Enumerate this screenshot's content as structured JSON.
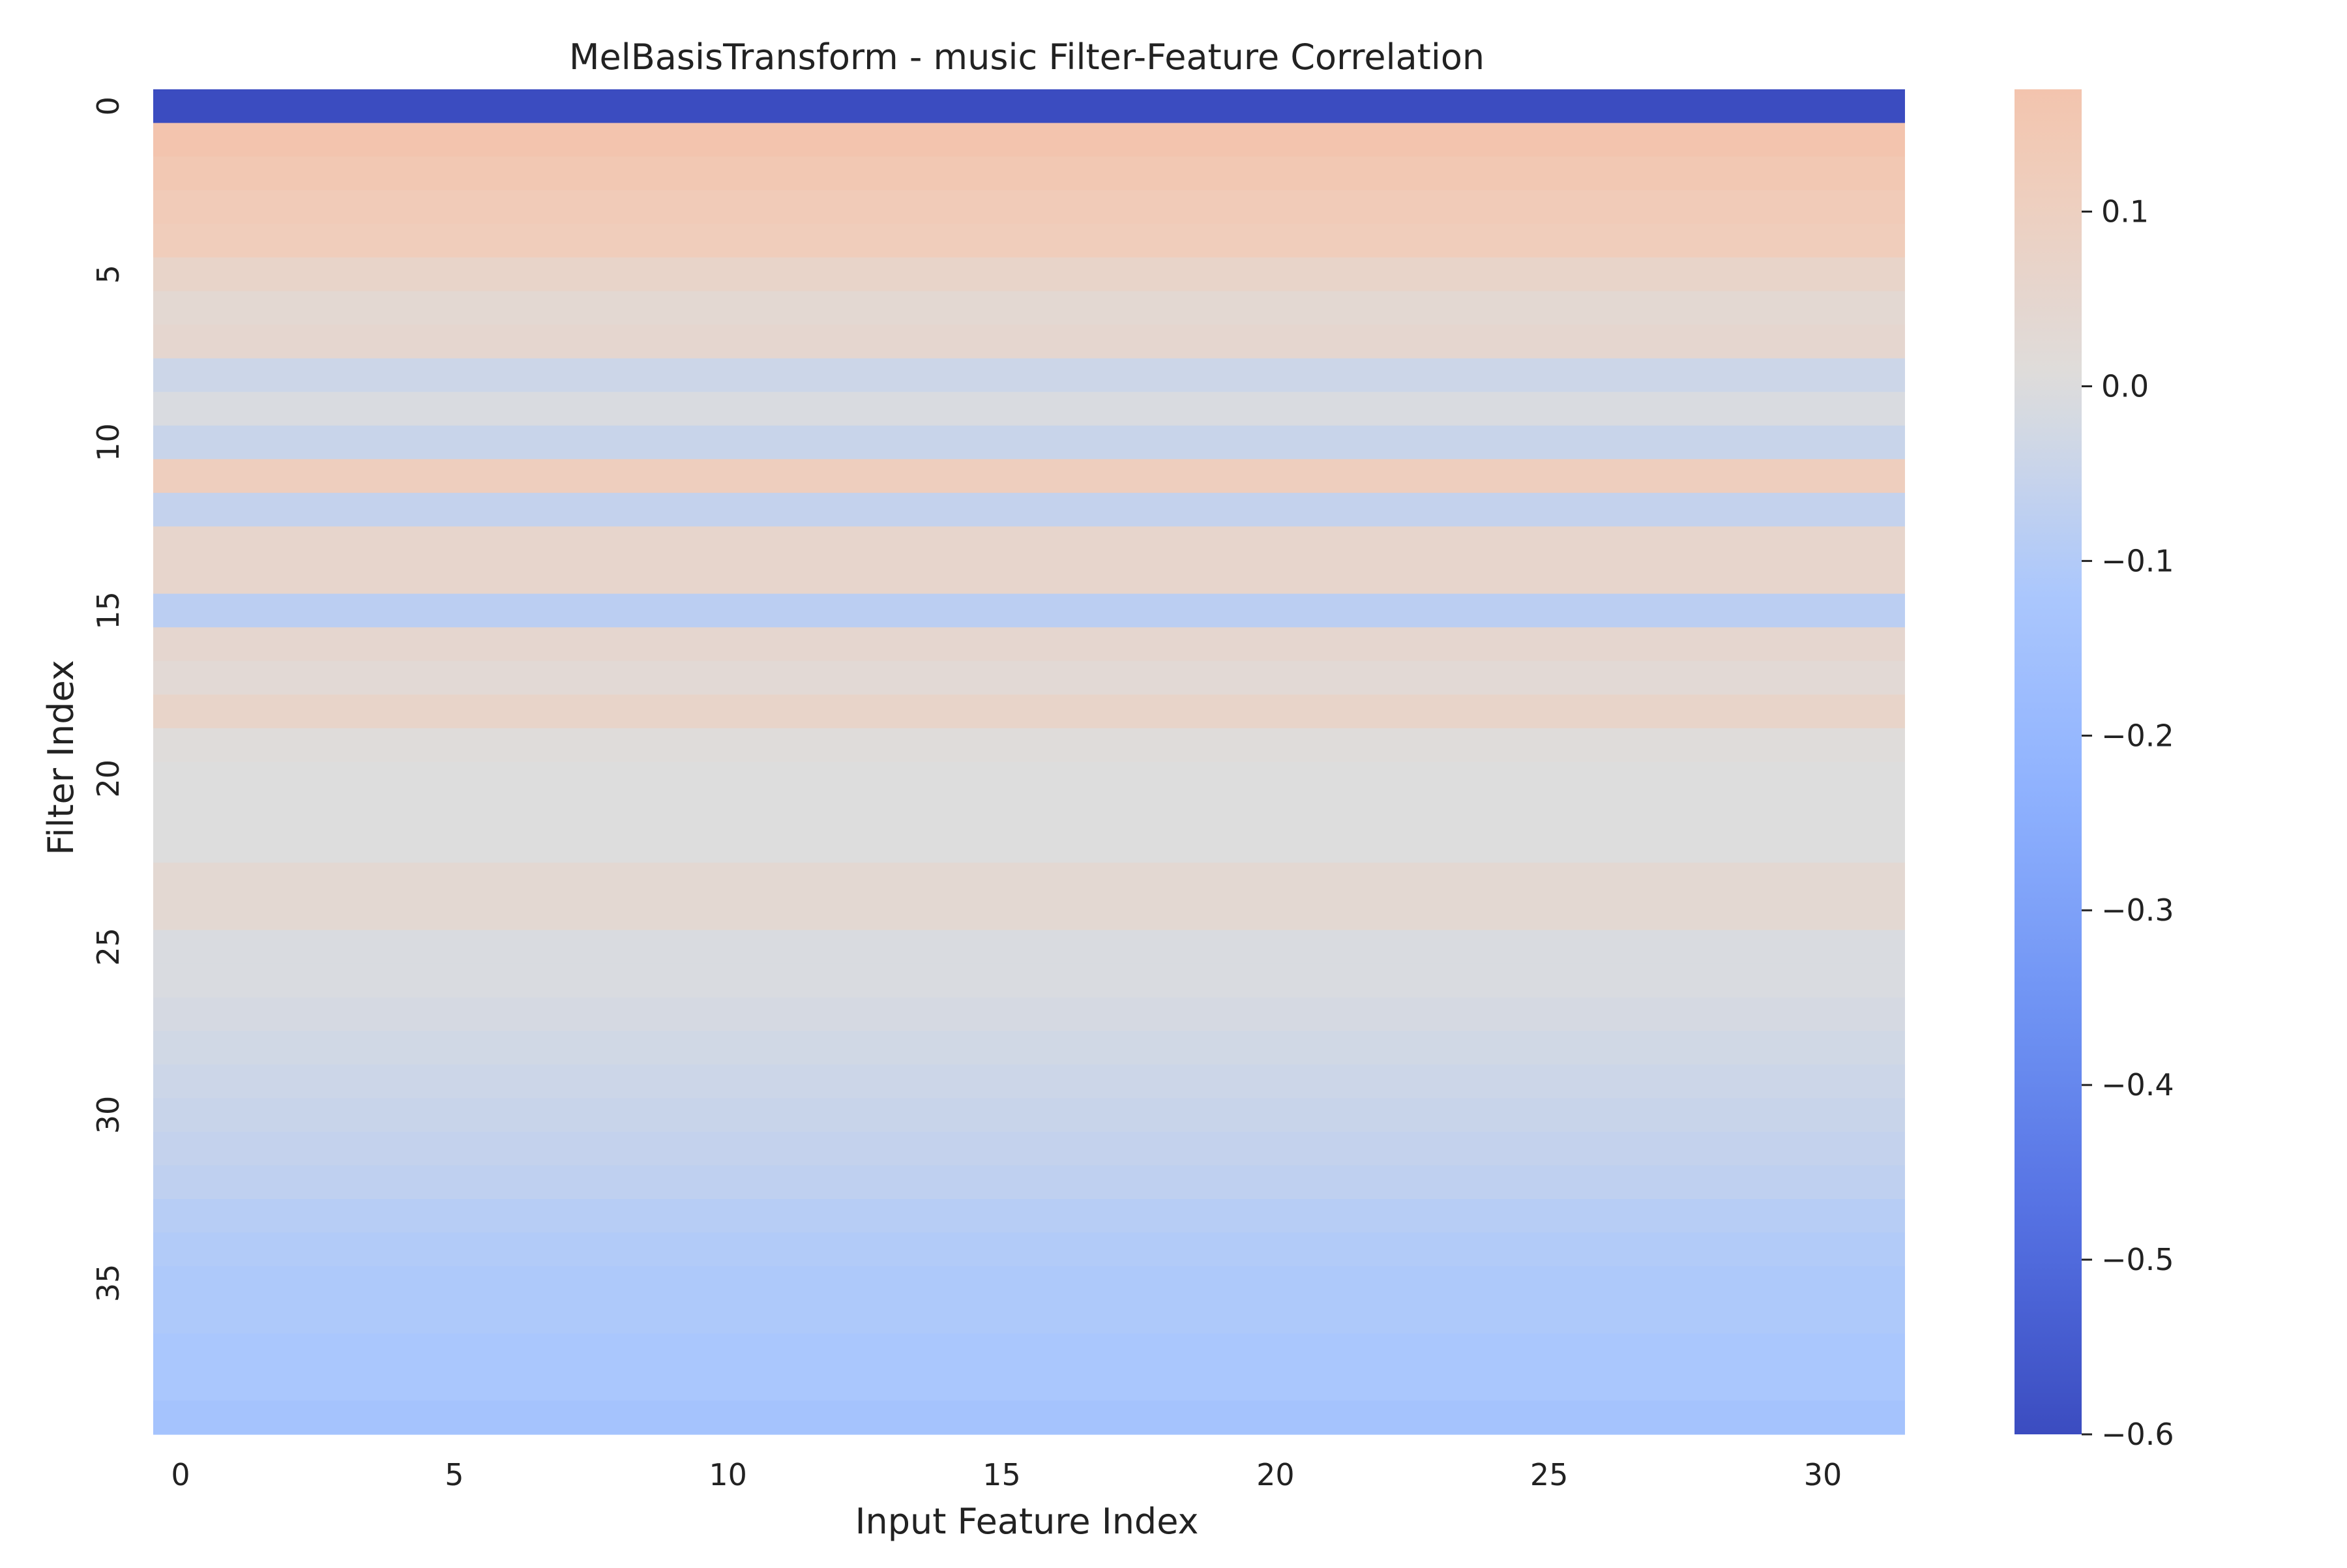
{
  "chart_data": {
    "type": "heatmap",
    "title": "MelBasisTransform - music Filter-Feature Correlation",
    "xlabel": "Input Feature Index",
    "ylabel": "Filter Index",
    "n_cols": 32,
    "n_rows": 40,
    "x_ticks": [
      0,
      5,
      10,
      15,
      20,
      25,
      30
    ],
    "y_ticks": [
      0,
      5,
      10,
      15,
      20,
      25,
      30,
      35
    ],
    "row_values": [
      -0.6,
      0.17,
      0.15,
      0.13,
      0.12,
      0.07,
      0.04,
      0.05,
      -0.04,
      -0.01,
      -0.05,
      0.11,
      -0.06,
      0.06,
      0.06,
      -0.08,
      0.05,
      0.03,
      0.07,
      0.01,
      0.0,
      0.0,
      0.0,
      0.04,
      0.04,
      -0.01,
      -0.01,
      -0.02,
      -0.03,
      -0.04,
      -0.05,
      -0.06,
      -0.07,
      -0.09,
      -0.1,
      -0.11,
      -0.11,
      -0.12,
      -0.12,
      -0.14
    ],
    "colorbar": {
      "min": -0.6,
      "max": 0.17,
      "ticks": [
        0.1,
        0.0,
        -0.1,
        -0.2,
        -0.3,
        -0.4,
        -0.5,
        -0.6
      ],
      "tick_labels": [
        "0.1",
        "0.0",
        "−0.1",
        "−0.2",
        "−0.3",
        "−0.4",
        "−0.5",
        "−0.6"
      ],
      "colormap": "coolwarm",
      "center": 0.0
    },
    "grid": false
  }
}
